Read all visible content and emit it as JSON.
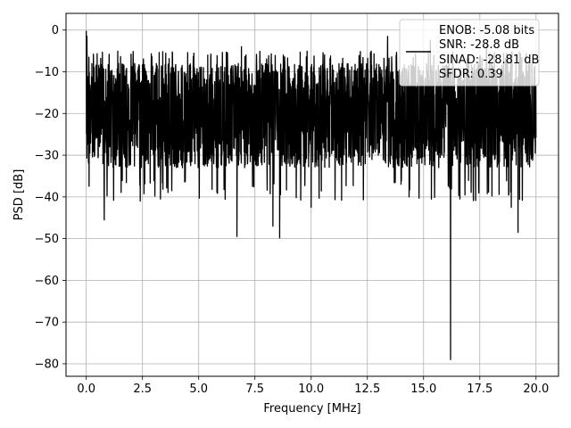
{
  "chart_data": {
    "type": "line",
    "xlabel": "Frequency [MHz]",
    "ylabel": "PSD [dB]",
    "xlim": [
      -0.9,
      21.0
    ],
    "ylim": [
      -83.0,
      4.0
    ],
    "xticks": [
      0.0,
      2.5,
      5.0,
      7.5,
      10.0,
      12.5,
      15.0,
      17.5,
      20.0
    ],
    "xtick_labels": [
      "0.0",
      "2.5",
      "5.0",
      "7.5",
      "10.0",
      "12.5",
      "15.0",
      "17.5",
      "20.0"
    ],
    "yticks": [
      0,
      -10,
      -20,
      -30,
      -40,
      -50,
      -60,
      -70,
      -80
    ],
    "ytick_labels": [
      "0",
      "−10",
      "−20",
      "−30",
      "−40",
      "−50",
      "−60",
      "−70",
      "−80"
    ],
    "grid": true,
    "legend_position": "top-right",
    "line_color": "#000000",
    "series": [
      {
        "legend_lines": [
          "ENOB: -5.08 bits",
          "SNR: -28.8 dB",
          "SINAD: -28.81 dB",
          "SFDR: 0.39"
        ],
        "x_range": [
          0.0,
          20.0
        ],
        "noise_band": {
          "upper_typ": -8,
          "lower_typ": -33,
          "median": -18
        },
        "peaks": [
          {
            "x": 0.0,
            "y": -0.2
          },
          {
            "x": 0.03,
            "y": -1.5
          },
          {
            "x": 6.9,
            "y": -4.0
          },
          {
            "x": 13.4,
            "y": -1.5
          },
          {
            "x": 15.3,
            "y": -2.5
          },
          {
            "x": 17.8,
            "y": -3.0
          }
        ],
        "dips": [
          {
            "x": 0.8,
            "y": -45.5
          },
          {
            "x": 2.4,
            "y": -41.0
          },
          {
            "x": 3.3,
            "y": -40.5
          },
          {
            "x": 6.7,
            "y": -49.5
          },
          {
            "x": 8.6,
            "y": -49.8
          },
          {
            "x": 8.3,
            "y": -47.0
          },
          {
            "x": 10.0,
            "y": -42.5
          },
          {
            "x": 16.2,
            "y": -79.0
          },
          {
            "x": 19.2,
            "y": -48.5
          },
          {
            "x": 18.9,
            "y": -42.5
          }
        ]
      }
    ]
  }
}
